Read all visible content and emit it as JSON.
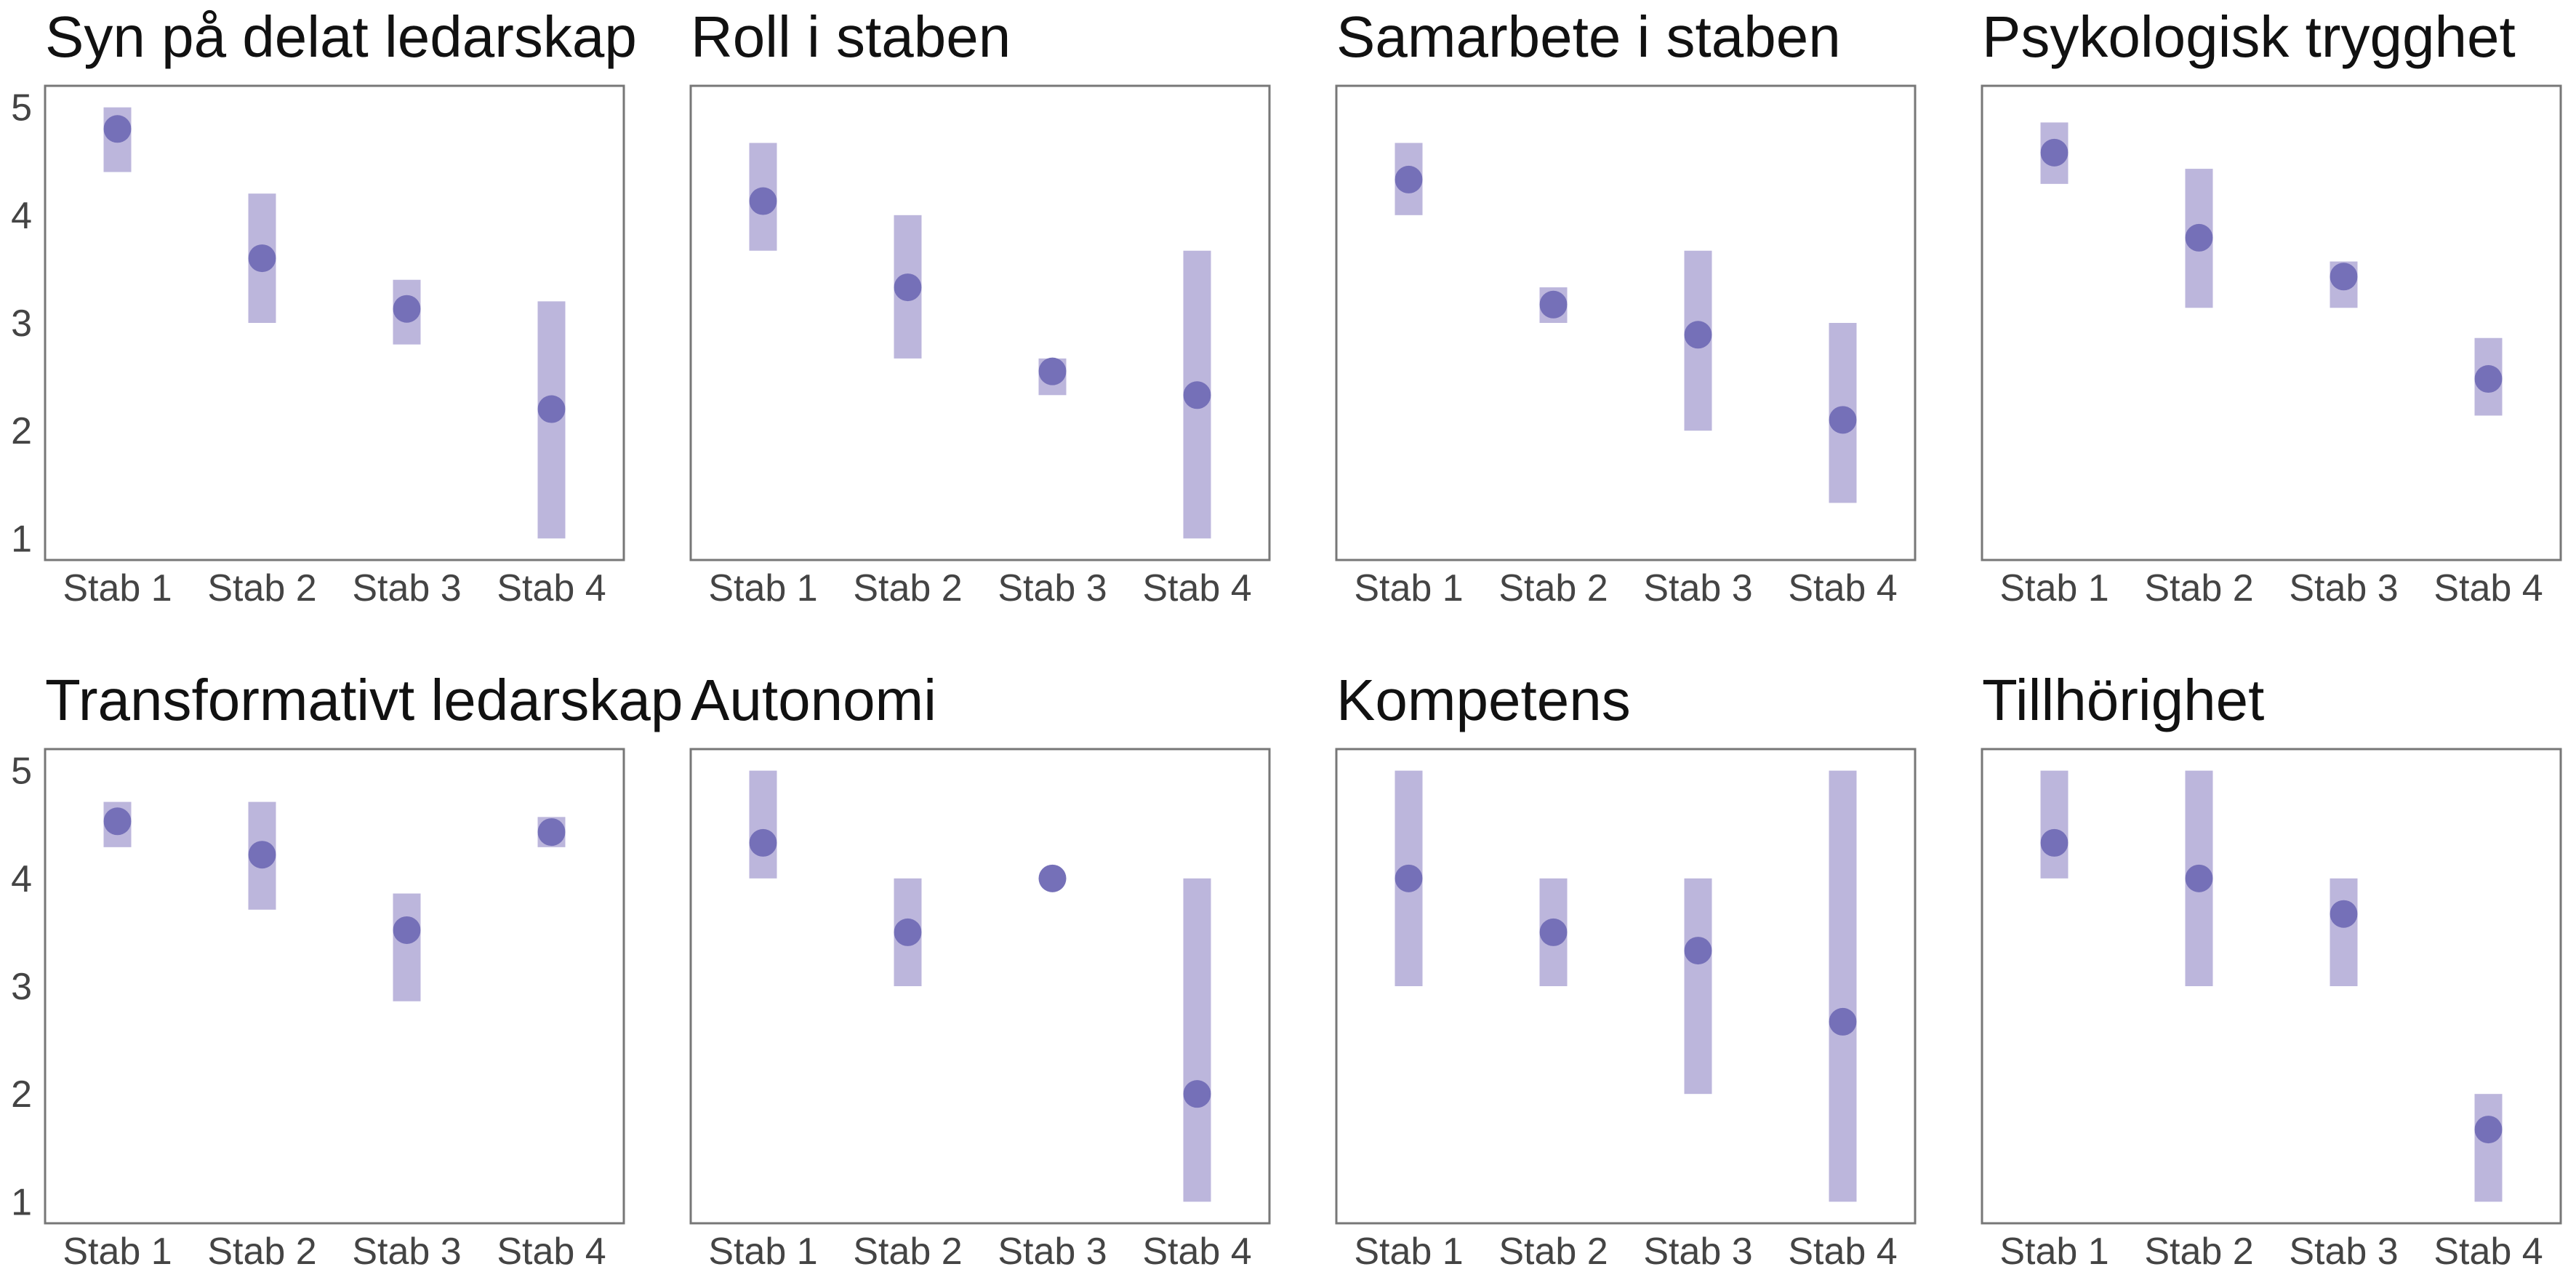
{
  "colors": {
    "range_bar": "#bcb6dc",
    "mean_point": "#7570b8"
  },
  "chart_data": {
    "type": "range-dot",
    "categories": [
      "Stab 1",
      "Stab 2",
      "Stab 3",
      "Stab 4"
    ],
    "ylim": [
      0.8,
      5.2
    ],
    "yticks": [
      1,
      2,
      3,
      4,
      5
    ],
    "grid": false,
    "panels": [
      {
        "title": "Syn på delat ledarskap",
        "mean": [
          4.8,
          3.6,
          3.13,
          2.2
        ],
        "low": [
          4.4,
          3.0,
          2.8,
          1.0
        ],
        "high": [
          5.0,
          4.2,
          3.4,
          3.2
        ]
      },
      {
        "title": "Roll i staben",
        "mean": [
          4.13,
          3.33,
          2.55,
          2.33
        ],
        "low": [
          3.67,
          2.67,
          2.33,
          1.0
        ],
        "high": [
          4.67,
          4.0,
          2.67,
          3.67
        ]
      },
      {
        "title": "Samarbete i staben",
        "mean": [
          4.33,
          3.17,
          2.89,
          2.1
        ],
        "low": [
          4.0,
          3.0,
          2.0,
          1.33
        ],
        "high": [
          4.67,
          3.33,
          3.67,
          3.0
        ]
      },
      {
        "title": "Psykologisk trygghet",
        "mean": [
          4.58,
          3.79,
          3.43,
          2.48
        ],
        "low": [
          4.29,
          3.14,
          3.14,
          2.14
        ],
        "high": [
          4.86,
          4.43,
          3.57,
          2.86
        ]
      },
      {
        "title": "Transformativt ledarskap",
        "mean": [
          4.53,
          4.22,
          3.52,
          4.43
        ],
        "low": [
          4.29,
          3.71,
          2.86,
          4.29
        ],
        "high": [
          4.71,
          4.71,
          3.86,
          4.57
        ]
      },
      {
        "title": "Autonomi",
        "mean": [
          4.33,
          3.5,
          4.0,
          2.0
        ],
        "low": [
          4.0,
          3.0,
          4.0,
          1.0
        ],
        "high": [
          5.0,
          4.0,
          4.0,
          4.0
        ]
      },
      {
        "title": "Kompetens",
        "mean": [
          4.0,
          3.5,
          3.33,
          2.67
        ],
        "low": [
          3.0,
          3.0,
          2.0,
          1.0
        ],
        "high": [
          5.0,
          4.0,
          4.0,
          5.0
        ]
      },
      {
        "title": "Tillhörighet",
        "mean": [
          4.33,
          4.0,
          3.67,
          1.67
        ],
        "low": [
          4.0,
          3.0,
          3.0,
          1.0
        ],
        "high": [
          5.0,
          5.0,
          4.0,
          2.0
        ]
      }
    ]
  }
}
